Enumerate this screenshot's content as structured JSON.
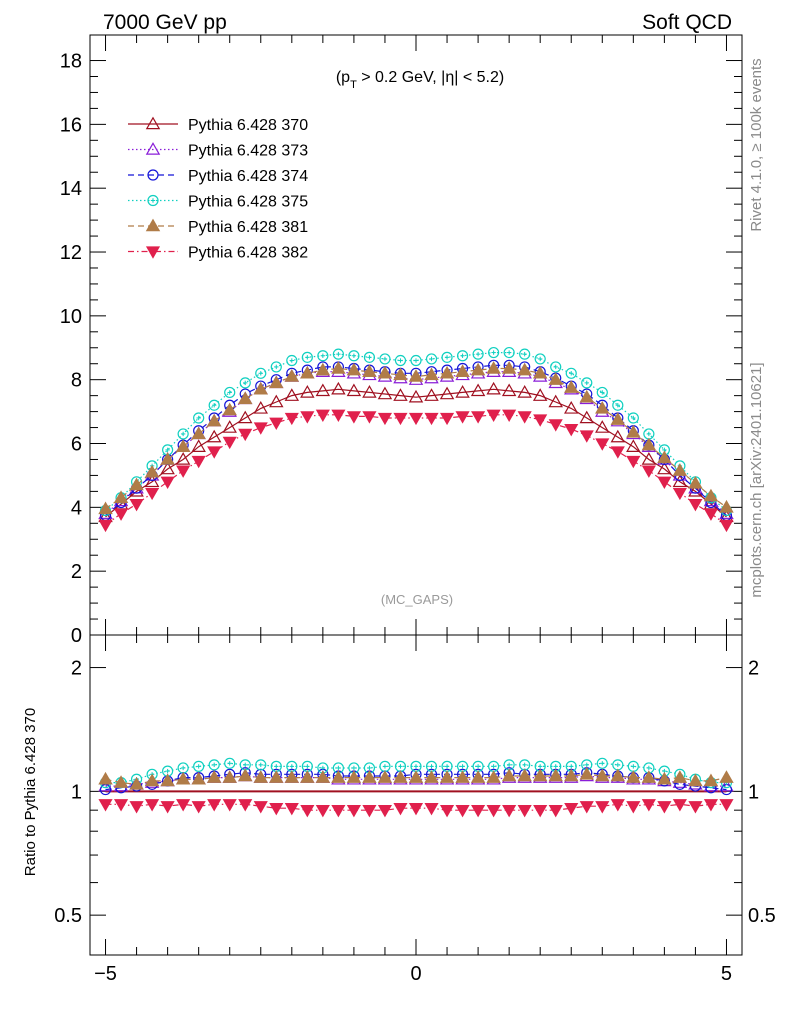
{
  "header": {
    "left_title": "7000 GeV pp",
    "right_title": "Soft QCD"
  },
  "side_labels": {
    "rivet": "Rivet 4.1.0, ≥ 100k events",
    "mcplots": "mcplots.cern.ch [arXiv:2401.10621]"
  },
  "chart_data": [
    {
      "type": "scatter",
      "panel": "main",
      "annotation": "(p_T > 0.2 GeV, |η| < 5.2)",
      "annotation_parts": {
        "pre": "(p",
        "sub": "T",
        "post": " > 0.2 GeV, |η| < 5.2)"
      },
      "watermark": "(MC_GAPS)",
      "xlim": [
        -5.25,
        5.25
      ],
      "ylim": [
        0,
        18.8
      ],
      "yticks": [
        "0",
        "2",
        "4",
        "6",
        "8",
        "10",
        "12",
        "14",
        "16",
        "18"
      ],
      "x": [
        -5.0,
        -4.75,
        -4.5,
        -4.25,
        -4.0,
        -3.75,
        -3.5,
        -3.25,
        -3.0,
        -2.75,
        -2.5,
        -2.25,
        -2.0,
        -1.75,
        -1.5,
        -1.25,
        -1.0,
        -0.75,
        -0.5,
        -0.25,
        0.0,
        0.25,
        0.5,
        0.75,
        1.0,
        1.25,
        1.5,
        1.75,
        2.0,
        2.25,
        2.5,
        2.75,
        3.0,
        3.25,
        3.5,
        3.75,
        4.0,
        4.25,
        4.5,
        4.75,
        5.0
      ],
      "series": [
        {
          "name": "Pythia 6.428 370",
          "color": "#a01020",
          "marker": "triangle-open",
          "line": "solid",
          "values": [
            3.7,
            4.1,
            4.5,
            4.8,
            5.2,
            5.5,
            5.9,
            6.2,
            6.5,
            6.8,
            7.1,
            7.3,
            7.5,
            7.6,
            7.65,
            7.7,
            7.65,
            7.6,
            7.55,
            7.5,
            7.45,
            7.5,
            7.55,
            7.6,
            7.65,
            7.7,
            7.65,
            7.6,
            7.5,
            7.3,
            7.1,
            6.8,
            6.5,
            6.2,
            5.9,
            5.5,
            5.2,
            4.8,
            4.5,
            4.1,
            3.7
          ]
        },
        {
          "name": "Pythia 6.428 373",
          "color": "#8a1ed8",
          "marker": "triangle-open",
          "line": "dotted",
          "values": [
            3.8,
            4.2,
            4.6,
            5.0,
            5.5,
            5.9,
            6.3,
            6.7,
            7.0,
            7.4,
            7.7,
            7.9,
            8.1,
            8.2,
            8.25,
            8.25,
            8.2,
            8.15,
            8.1,
            8.05,
            8.0,
            8.05,
            8.1,
            8.15,
            8.2,
            8.25,
            8.25,
            8.2,
            8.1,
            7.9,
            7.7,
            7.4,
            7.0,
            6.7,
            6.3,
            5.9,
            5.5,
            5.0,
            4.6,
            4.2,
            3.8
          ]
        },
        {
          "name": "Pythia 6.428 374",
          "color": "#1414d8",
          "marker": "circle-open",
          "line": "dashed",
          "values": [
            3.75,
            4.15,
            4.6,
            5.0,
            5.5,
            5.95,
            6.4,
            6.8,
            7.2,
            7.55,
            7.8,
            8.0,
            8.2,
            8.3,
            8.4,
            8.4,
            8.35,
            8.3,
            8.25,
            8.2,
            8.2,
            8.25,
            8.3,
            8.35,
            8.4,
            8.45,
            8.45,
            8.4,
            8.25,
            8.05,
            7.8,
            7.55,
            7.2,
            6.8,
            6.4,
            5.95,
            5.5,
            5.0,
            4.6,
            4.15,
            3.75
          ]
        },
        {
          "name": "Pythia 6.428 375",
          "color": "#10d0c0",
          "marker": "circle-open-cross",
          "line": "dotted",
          "values": [
            3.9,
            4.3,
            4.8,
            5.3,
            5.8,
            6.3,
            6.8,
            7.2,
            7.6,
            7.9,
            8.2,
            8.4,
            8.6,
            8.7,
            8.75,
            8.8,
            8.75,
            8.7,
            8.65,
            8.6,
            8.6,
            8.65,
            8.7,
            8.75,
            8.8,
            8.85,
            8.85,
            8.8,
            8.65,
            8.4,
            8.2,
            7.9,
            7.6,
            7.2,
            6.8,
            6.3,
            5.8,
            5.3,
            4.8,
            4.3,
            3.9
          ]
        },
        {
          "name": "Pythia 6.428 381",
          "color": "#b07c48",
          "marker": "triangle-filled",
          "line": "dashed",
          "values": [
            3.95,
            4.3,
            4.7,
            5.1,
            5.5,
            5.9,
            6.3,
            6.7,
            7.05,
            7.4,
            7.7,
            7.9,
            8.1,
            8.2,
            8.3,
            8.35,
            8.3,
            8.25,
            8.2,
            8.15,
            8.1,
            8.15,
            8.2,
            8.25,
            8.3,
            8.35,
            8.35,
            8.3,
            8.2,
            8.0,
            7.75,
            7.45,
            7.1,
            6.75,
            6.35,
            5.95,
            5.55,
            5.15,
            4.75,
            4.35,
            4.0
          ]
        },
        {
          "name": "Pythia 6.428 382",
          "color": "#e0204c",
          "marker": "triangle-down-filled",
          "line": "dashdot",
          "values": [
            3.45,
            3.8,
            4.1,
            4.45,
            4.8,
            5.15,
            5.45,
            5.75,
            6.05,
            6.3,
            6.5,
            6.65,
            6.8,
            6.85,
            6.9,
            6.9,
            6.85,
            6.85,
            6.8,
            6.8,
            6.8,
            6.8,
            6.8,
            6.85,
            6.85,
            6.9,
            6.9,
            6.85,
            6.75,
            6.6,
            6.45,
            6.25,
            6.0,
            5.75,
            5.45,
            5.15,
            4.8,
            4.45,
            4.1,
            3.8,
            3.45
          ]
        }
      ]
    },
    {
      "type": "scatter",
      "panel": "ratio",
      "ylabel": "Ratio to Pythia 6.428 370",
      "xlim": [
        -5.25,
        5.25
      ],
      "ylim": [
        0.4,
        2.4
      ],
      "yscale": "log",
      "yticks": [
        "0.5",
        "1",
        "2"
      ],
      "xticks": [
        "−5",
        "0",
        "5"
      ],
      "x": [
        -5.0,
        -4.75,
        -4.5,
        -4.25,
        -4.0,
        -3.75,
        -3.5,
        -3.25,
        -3.0,
        -2.75,
        -2.5,
        -2.25,
        -2.0,
        -1.75,
        -1.5,
        -1.25,
        -1.0,
        -0.75,
        -0.5,
        -0.25,
        0.0,
        0.25,
        0.5,
        0.75,
        1.0,
        1.25,
        1.5,
        1.75,
        2.0,
        2.25,
        2.5,
        2.75,
        3.0,
        3.25,
        3.5,
        3.75,
        4.0,
        4.25,
        4.5,
        4.75,
        5.0
      ],
      "series": [
        {
          "name": "Pythia 6.428 370",
          "values": [
            1,
            1,
            1,
            1,
            1,
            1,
            1,
            1,
            1,
            1,
            1,
            1,
            1,
            1,
            1,
            1,
            1,
            1,
            1,
            1,
            1,
            1,
            1,
            1,
            1,
            1,
            1,
            1,
            1,
            1,
            1,
            1,
            1,
            1,
            1,
            1,
            1,
            1,
            1,
            1,
            1
          ]
        },
        {
          "name": "Pythia 6.428 373",
          "values": [
            1.03,
            1.03,
            1.04,
            1.05,
            1.06,
            1.07,
            1.07,
            1.08,
            1.08,
            1.09,
            1.08,
            1.08,
            1.08,
            1.08,
            1.08,
            1.07,
            1.07,
            1.07,
            1.07,
            1.07,
            1.07,
            1.07,
            1.07,
            1.07,
            1.07,
            1.07,
            1.08,
            1.08,
            1.08,
            1.08,
            1.08,
            1.09,
            1.08,
            1.08,
            1.07,
            1.07,
            1.06,
            1.05,
            1.04,
            1.03,
            1.03
          ]
        },
        {
          "name": "Pythia 6.428 374",
          "values": [
            1.01,
            1.02,
            1.03,
            1.04,
            1.06,
            1.08,
            1.08,
            1.09,
            1.1,
            1.11,
            1.1,
            1.1,
            1.1,
            1.1,
            1.1,
            1.09,
            1.09,
            1.09,
            1.09,
            1.09,
            1.1,
            1.1,
            1.1,
            1.1,
            1.1,
            1.1,
            1.11,
            1.1,
            1.1,
            1.1,
            1.1,
            1.11,
            1.1,
            1.09,
            1.08,
            1.08,
            1.06,
            1.04,
            1.03,
            1.02,
            1.01
          ]
        },
        {
          "name": "Pythia 6.428 375",
          "values": [
            1.05,
            1.05,
            1.07,
            1.1,
            1.12,
            1.14,
            1.15,
            1.16,
            1.17,
            1.16,
            1.16,
            1.15,
            1.15,
            1.15,
            1.14,
            1.14,
            1.14,
            1.14,
            1.15,
            1.15,
            1.15,
            1.15,
            1.15,
            1.15,
            1.15,
            1.15,
            1.16,
            1.16,
            1.15,
            1.15,
            1.15,
            1.16,
            1.17,
            1.16,
            1.15,
            1.14,
            1.12,
            1.1,
            1.07,
            1.05,
            1.05
          ]
        },
        {
          "name": "Pythia 6.428 381",
          "values": [
            1.07,
            1.05,
            1.04,
            1.06,
            1.06,
            1.07,
            1.07,
            1.08,
            1.08,
            1.09,
            1.08,
            1.08,
            1.08,
            1.08,
            1.08,
            1.08,
            1.08,
            1.08,
            1.08,
            1.08,
            1.08,
            1.08,
            1.08,
            1.08,
            1.08,
            1.08,
            1.09,
            1.09,
            1.09,
            1.09,
            1.09,
            1.1,
            1.09,
            1.09,
            1.08,
            1.08,
            1.07,
            1.08,
            1.06,
            1.06,
            1.08
          ]
        },
        {
          "name": "Pythia 6.428 382",
          "values": [
            0.93,
            0.93,
            0.92,
            0.93,
            0.92,
            0.93,
            0.92,
            0.93,
            0.93,
            0.93,
            0.92,
            0.91,
            0.91,
            0.9,
            0.9,
            0.9,
            0.9,
            0.9,
            0.9,
            0.91,
            0.91,
            0.91,
            0.9,
            0.9,
            0.9,
            0.9,
            0.9,
            0.9,
            0.9,
            0.9,
            0.91,
            0.92,
            0.92,
            0.93,
            0.92,
            0.93,
            0.92,
            0.93,
            0.92,
            0.93,
            0.93
          ]
        }
      ]
    }
  ]
}
